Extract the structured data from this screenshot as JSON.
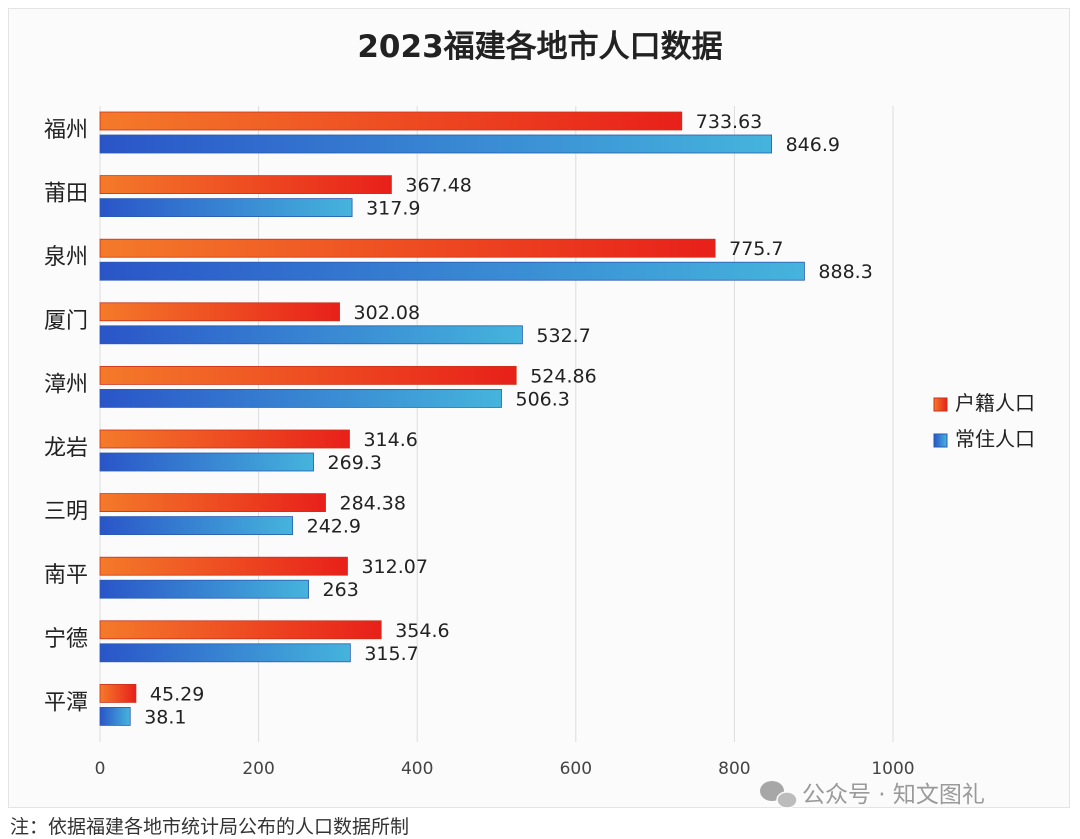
{
  "chart_data": {
    "type": "bar",
    "orientation": "horizontal",
    "title": "2023福建各地市人口数据",
    "categories": [
      "福州",
      "莆田",
      "泉州",
      "厦门",
      "漳州",
      "龙岩",
      "三明",
      "南平",
      "宁德",
      "平潭"
    ],
    "series": [
      {
        "name": "户籍人口",
        "color": "#e8391f",
        "label_values": [
          "733.63",
          "367.48",
          "775.7",
          "302.08",
          "524.86",
          "314.6",
          "284.38",
          "312.07",
          "354.6",
          "45.29"
        ],
        "values": [
          733.63,
          367.48,
          775.7,
          302.08,
          524.86,
          314.6,
          284.38,
          312.07,
          354.6,
          45.29
        ]
      },
      {
        "name": "常住人口",
        "color": "#2f6fc9",
        "label_values": [
          "846.9",
          "317.9",
          "888.3",
          "532.7",
          "506.3",
          "269.3",
          "242.9",
          "263",
          "315.7",
          "38.1"
        ],
        "values": [
          846.9,
          317.9,
          888.3,
          532.7,
          506.3,
          269.3,
          242.9,
          263,
          315.7,
          38.1
        ]
      }
    ],
    "xlim": [
      0,
      1000
    ],
    "xticks": [
      "0",
      "200",
      "400",
      "600",
      "800",
      "1000"
    ],
    "xlabel": "",
    "ylabel": "",
    "grid": true,
    "legend": "right"
  },
  "watermark": "公众号 · 知文图礼",
  "footnote": "注：依据福建各地市统计局公布的人口数据所制"
}
